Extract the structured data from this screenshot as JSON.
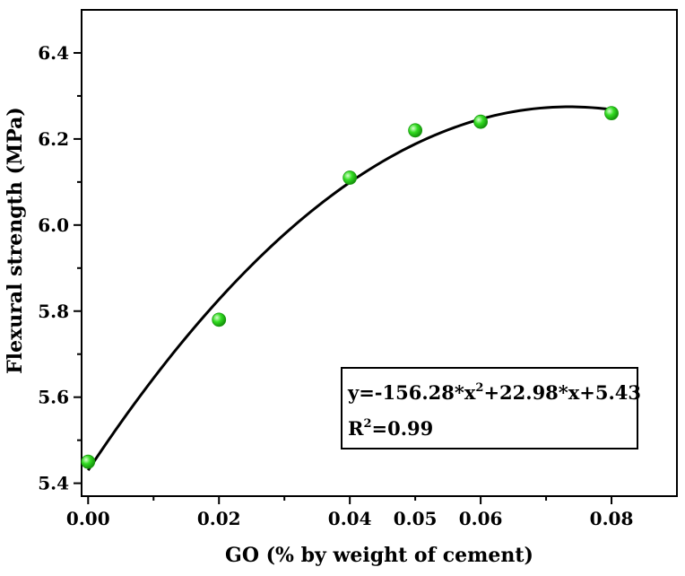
{
  "chart_data": {
    "type": "scatter",
    "title": "",
    "xlabel": "GO (% by weight of cement)",
    "ylabel": "Flexural strength (MPa)",
    "xlim": [
      -0.001,
      0.09
    ],
    "ylim": [
      5.37,
      6.5
    ],
    "x_ticks": [
      "0.00",
      "0.02",
      "0.04",
      "0.05",
      "0.06",
      "0.08"
    ],
    "x_tick_values": [
      0.0,
      0.02,
      0.04,
      0.05,
      0.06,
      0.08
    ],
    "y_ticks": [
      "5.4",
      "5.6",
      "5.8",
      "6.0",
      "6.2",
      "6.4"
    ],
    "y_tick_values": [
      5.4,
      5.6,
      5.8,
      6.0,
      6.2,
      6.4
    ],
    "series": [
      {
        "kind": "points",
        "x": [
          0.0,
          0.02,
          0.04,
          0.05,
          0.06,
          0.08
        ],
        "y": [
          5.45,
          5.78,
          6.11,
          6.22,
          6.24,
          6.26
        ],
        "color": "#33dd22"
      },
      {
        "kind": "fit",
        "coefficients": {
          "a": -156.28,
          "b": 22.98,
          "c": 5.43
        },
        "x_range": [
          0.0,
          0.08
        ],
        "color": "#000000"
      }
    ],
    "annotation": {
      "line1_parts": [
        "y=-156.28*x",
        "2",
        "+22.98*x+5.43"
      ],
      "line2_parts": [
        "R",
        "2",
        "=0.99"
      ]
    },
    "grid": false
  }
}
